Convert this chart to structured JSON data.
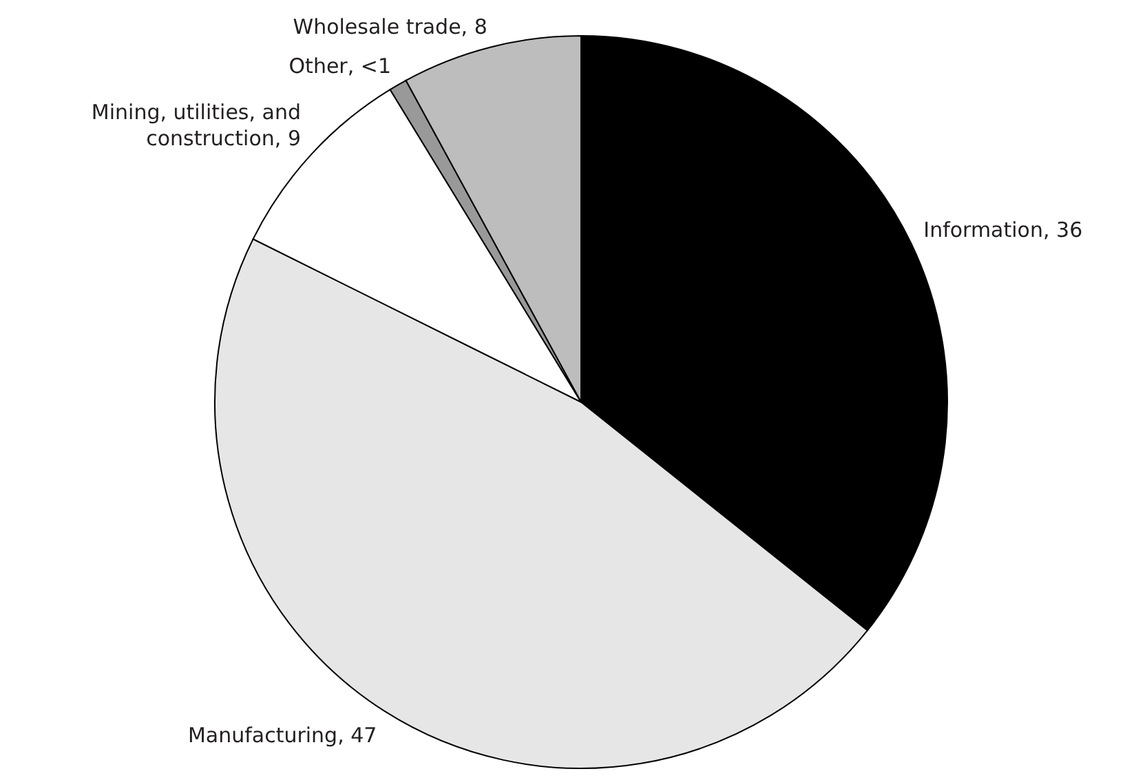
{
  "chart_data": {
    "type": "pie",
    "categories": [
      "Information",
      "Manufacturing",
      "Mining, utilities, and construction",
      "Other",
      "Wholesale trade"
    ],
    "values": [
      36,
      47,
      9,
      0.8,
      8
    ],
    "value_labels": [
      "36",
      "47",
      "9",
      "<1",
      "8"
    ],
    "colors": [
      "#000000",
      "#e6e6e6",
      "#ffffff",
      "#999999",
      "#bdbdbd"
    ]
  }
}
